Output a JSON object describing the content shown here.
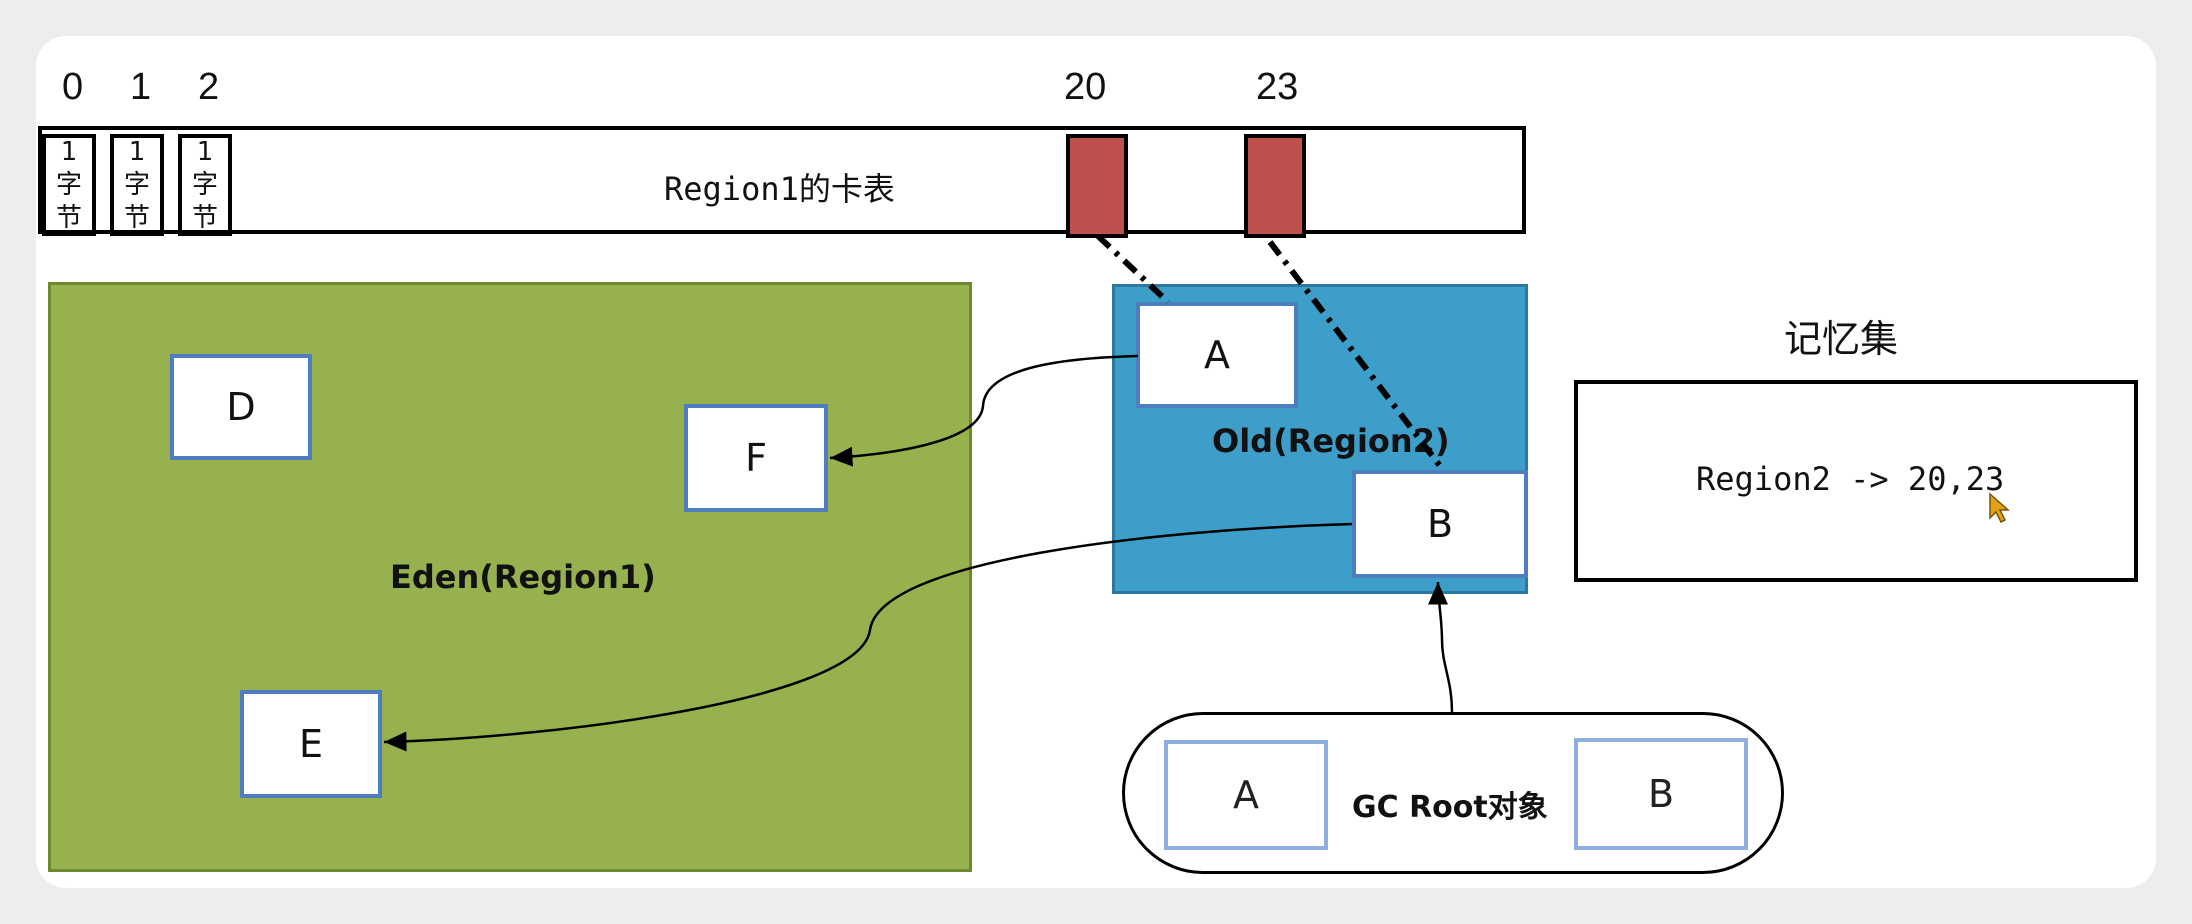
{
  "card_table": {
    "indices": [
      "0",
      "1",
      "2",
      "20",
      "23"
    ],
    "byte_cell_lines": [
      "1",
      "字",
      "节"
    ],
    "label": "Region1的卡表"
  },
  "regions": {
    "eden_label": "Eden(Region1)",
    "old_label": "Old(Region2)"
  },
  "objects": {
    "d": "D",
    "f": "F",
    "e": "E",
    "a": "A",
    "b": "B"
  },
  "remembered_set": {
    "title": "记忆集",
    "entry": "Region2 -> 20,23"
  },
  "gc_roots": {
    "label": "GC Root对象",
    "items": [
      "A",
      "B"
    ]
  },
  "colors": {
    "dirty_card": "#c0504d",
    "eden": "#97b14f",
    "old": "#3d9ec9",
    "object_border": "#4f7ec0"
  }
}
